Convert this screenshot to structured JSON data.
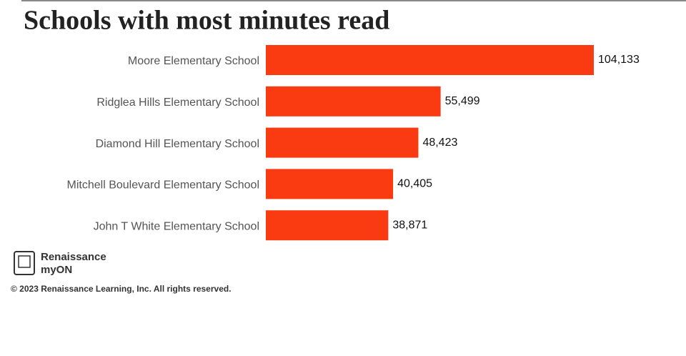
{
  "chart_data": {
    "type": "bar",
    "orientation": "horizontal",
    "title": "Schools with most minutes read",
    "categories": [
      "Moore Elementary School",
      "Ridglea Hills Elementary School",
      "Diamond Hill Elementary School",
      "Mitchell Boulevard Elementary School",
      "John T White Elementary School"
    ],
    "values": [
      104133,
      55499,
      48423,
      40405,
      38871
    ],
    "value_labels": [
      "104,133",
      "55,499",
      "48,423",
      "40,405",
      "38,871"
    ],
    "color": "#fa3a10"
  },
  "footer": {
    "brand": [
      "Renaissance",
      "myON"
    ],
    "copyright": "© 2023 Renaissance Learning, Inc. All rights reserved."
  }
}
